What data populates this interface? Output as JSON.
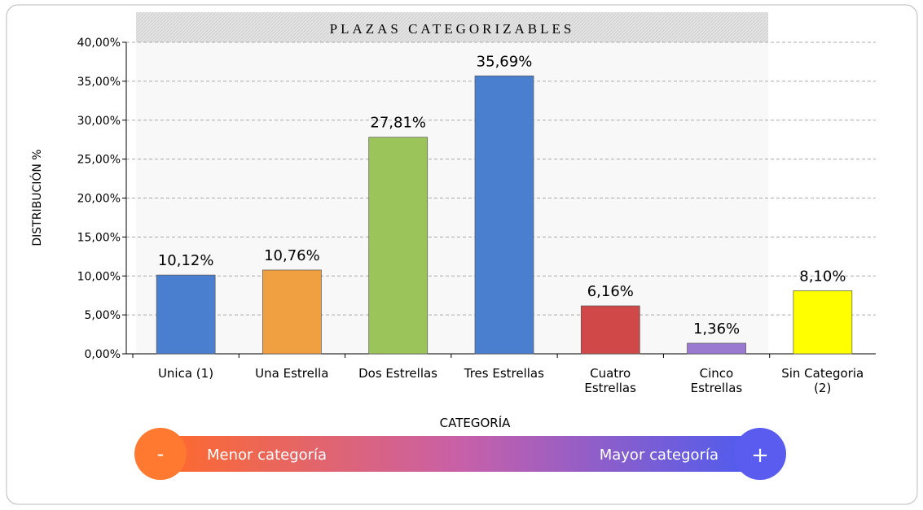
{
  "chart_data": {
    "type": "bar",
    "title": "PLAZAS CATEGORIZABLES",
    "y_label": "DISTRIBUCIÓN %",
    "x_label": "CATEGORÍA",
    "categories": [
      "Unica (1)",
      "Una Estrella",
      "Dos Estrellas",
      "Tres Estrellas",
      "Cuatro\nEstrellas",
      "Cinco\nEstrellas",
      "Sin Categoria\n(2)"
    ],
    "values": [
      10.12,
      10.76,
      27.81,
      35.69,
      6.16,
      1.36,
      8.1
    ],
    "value_labels": [
      "10,12%",
      "10,76%",
      "27,81%",
      "35,69%",
      "6,16%",
      "1,36%",
      "8,10%"
    ],
    "colors": [
      "#4a7fcf",
      "#f0a040",
      "#9bc55a",
      "#4a7fcf",
      "#d04848",
      "#9a7ad0",
      "#ffff00"
    ],
    "ylim": [
      0,
      40
    ],
    "yticks": [
      {
        "value": 0,
        "label": "0,00%"
      },
      {
        "value": 5,
        "label": "5,00%"
      },
      {
        "value": 10,
        "label": "10,00%"
      },
      {
        "value": 15,
        "label": "15,00%"
      },
      {
        "value": 20,
        "label": "20,00%"
      },
      {
        "value": 25,
        "label": "25,00%"
      },
      {
        "value": 30,
        "label": "30,00%"
      },
      {
        "value": 35,
        "label": "35,00%"
      },
      {
        "value": 40,
        "label": "40,00%"
      }
    ],
    "grid": true
  },
  "scale": {
    "minus": "-",
    "low": "Menor categoría",
    "high": "Mayor categoría",
    "plus": "+"
  }
}
